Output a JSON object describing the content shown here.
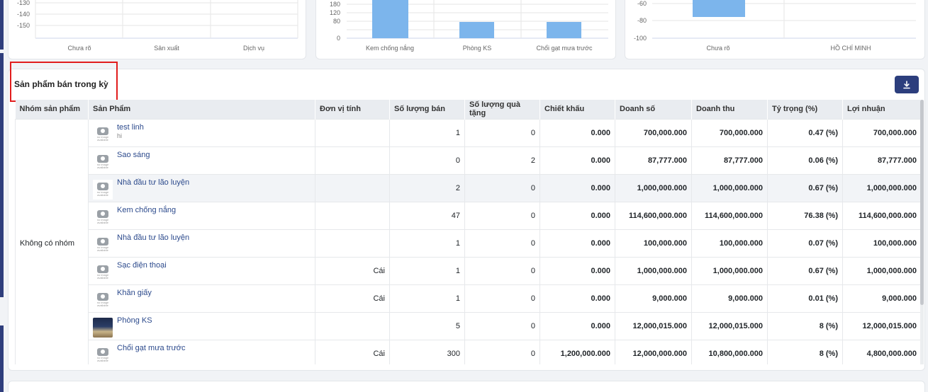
{
  "charts": {
    "left": {
      "y_ticks": [
        "-130",
        "-140",
        "-150"
      ],
      "categories": [
        "Chưa rõ",
        "Sản xuất",
        "Dịch vụ"
      ]
    },
    "middle": {
      "y_ticks": [
        "180",
        "120",
        "80",
        "0"
      ],
      "categories": [
        "Kem chống nắng",
        "Phòng KS",
        "Chổi gạt mưa trước"
      ],
      "bar_color": "#7cb5ec"
    },
    "right": {
      "y_ticks": [
        "-60",
        "-80",
        "-100"
      ],
      "categories": [
        "Chưa rõ",
        "HỒ CHÍ MINH"
      ],
      "bar_color": "#7cb5ec"
    }
  },
  "section": {
    "title": "Sản phẩm bán trong kỳ",
    "download_icon": "download-icon"
  },
  "table": {
    "headers": [
      "Nhóm sản phẩm",
      "Sản Phẩm",
      "Đơn vị tính",
      "Số lượng bán",
      "Số lượng quà tặng",
      "Chiết khấu",
      "Doanh số",
      "Doanh thu",
      "Tỷ trọng (%)",
      "Lợi nhuận"
    ],
    "group_label": "Không có nhóm",
    "no_image_caption": "no image available",
    "rows": [
      {
        "name": "test linh",
        "sub": "hi",
        "unit": "",
        "qty": "1",
        "gift": "0",
        "discount": "0.000",
        "sales": "700,000.000",
        "revenue": "700,000.000",
        "share": "0.47 (%)",
        "profit": "700,000.000",
        "image": "no-image"
      },
      {
        "name": "Sao sáng",
        "sub": "",
        "unit": "",
        "qty": "0",
        "gift": "2",
        "discount": "0.000",
        "sales": "87,777.000",
        "revenue": "87,777.000",
        "share": "0.06 (%)",
        "profit": "87,777.000",
        "image": "no-image"
      },
      {
        "name": "Nhà đầu tư lão luyện",
        "sub": "",
        "unit": "",
        "qty": "2",
        "gift": "0",
        "discount": "0.000",
        "sales": "1,000,000.000",
        "revenue": "1,000,000.000",
        "share": "0.67 (%)",
        "profit": "1,000,000.000",
        "image": "no-image"
      },
      {
        "name": "Kem chống nắng",
        "sub": "",
        "unit": "",
        "qty": "47",
        "gift": "0",
        "discount": "0.000",
        "sales": "114,600,000.000",
        "revenue": "114,600,000.000",
        "share": "76.38 (%)",
        "profit": "114,600,000.000",
        "image": "no-image"
      },
      {
        "name": "Nhà đầu tư lão luyện",
        "sub": "",
        "unit": "",
        "qty": "1",
        "gift": "0",
        "discount": "0.000",
        "sales": "100,000.000",
        "revenue": "100,000.000",
        "share": "0.07 (%)",
        "profit": "100,000.000",
        "image": "no-image"
      },
      {
        "name": "Sạc điện thoại",
        "sub": "",
        "unit": "Cái",
        "qty": "1",
        "gift": "0",
        "discount": "0.000",
        "sales": "1,000,000.000",
        "revenue": "1,000,000.000",
        "share": "0.67 (%)",
        "profit": "1,000,000.000",
        "image": "no-image"
      },
      {
        "name": "Khăn giấy",
        "sub": "",
        "unit": "Cái",
        "qty": "1",
        "gift": "0",
        "discount": "0.000",
        "sales": "9,000.000",
        "revenue": "9,000.000",
        "share": "0.01 (%)",
        "profit": "9,000.000",
        "image": "no-image"
      },
      {
        "name": "Phòng KS",
        "sub": "",
        "unit": "",
        "qty": "5",
        "gift": "0",
        "discount": "0.000",
        "sales": "12,000,015.000",
        "revenue": "12,000,015.000",
        "share": "8 (%)",
        "profit": "12,000,015.000",
        "image": "photo"
      },
      {
        "name": "Chổi gạt mưa trước",
        "sub": "",
        "unit": "Cái",
        "qty": "300",
        "gift": "0",
        "discount": "1,200,000.000",
        "sales": "12,000,000.000",
        "revenue": "10,800,000.000",
        "share": "8 (%)",
        "profit": "4,800,000.000",
        "image": "no-image"
      }
    ]
  }
}
